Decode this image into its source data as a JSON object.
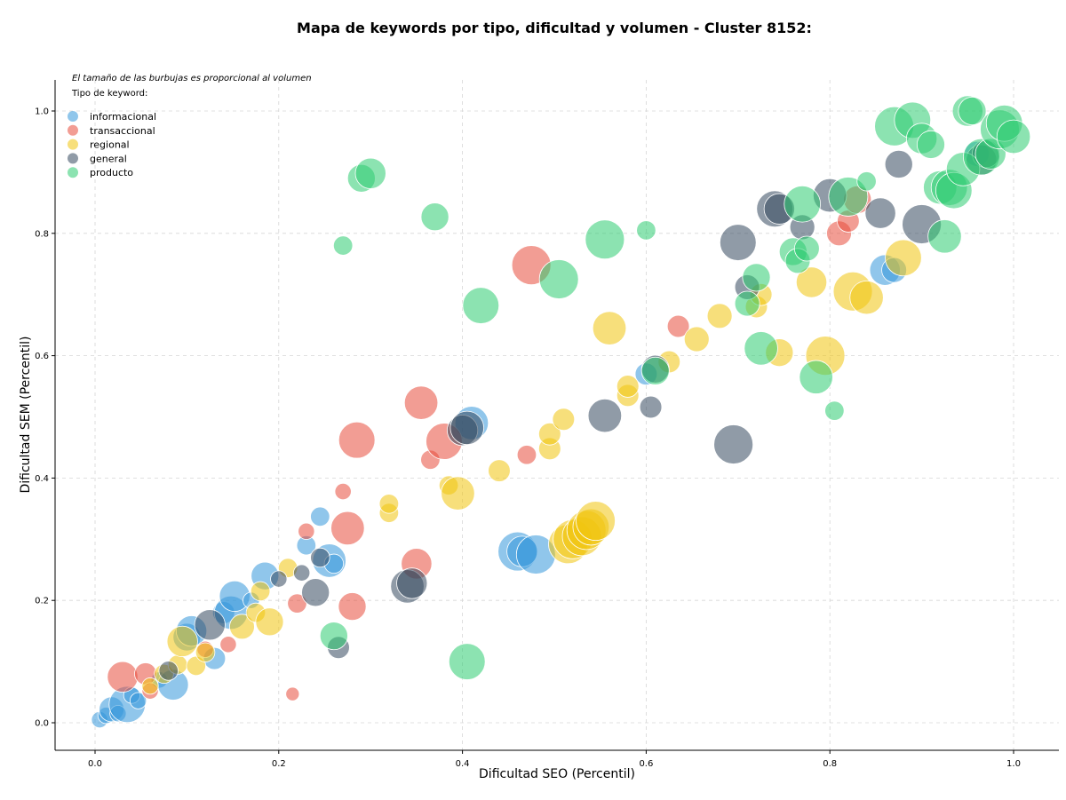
{
  "chart_data": {
    "type": "scatter",
    "title": "Mapa de keywords por tipo, dificultad y volumen - Cluster 8152:",
    "xlabel": "Dificultad SEO (Percentil)",
    "ylabel": "Dificultad SEM (Percentil)",
    "xlim": [
      -0.045,
      1.05
    ],
    "ylim": [
      -0.045,
      1.05
    ],
    "xticks": [
      "0.0",
      "0.2",
      "0.4",
      "0.6",
      "0.8",
      "1.0"
    ],
    "yticks": [
      "0.0",
      "0.2",
      "0.4",
      "0.6",
      "0.8",
      "1.0"
    ],
    "xtick_values": [
      0,
      0.2,
      0.4,
      0.6,
      0.8,
      1.0
    ],
    "ytick_values": [
      0,
      0.2,
      0.4,
      0.6,
      0.8,
      1.0
    ],
    "grid": true,
    "legend_placement": "top-left",
    "note": "El tamaño de las burbujas es proporcional al volumen",
    "legend_title": "Tipo de keyword:",
    "size_encoding": "relative volume (0-1)",
    "series": [
      {
        "name": "informacional",
        "color": "#3498db",
        "points": [
          [
            0.005,
            0.005,
            0.2
          ],
          [
            0.012,
            0.012,
            0.2
          ],
          [
            0.018,
            0.022,
            0.5
          ],
          [
            0.025,
            0.015,
            0.2
          ],
          [
            0.035,
            0.03,
            0.9
          ],
          [
            0.04,
            0.045,
            0.2
          ],
          [
            0.047,
            0.036,
            0.2
          ],
          [
            0.07,
            0.07,
            0.2
          ],
          [
            0.085,
            0.062,
            0.7
          ],
          [
            0.1,
            0.14,
            0.6
          ],
          [
            0.105,
            0.15,
            0.7
          ],
          [
            0.13,
            0.105,
            0.4
          ],
          [
            0.14,
            0.18,
            0.4
          ],
          [
            0.148,
            0.18,
            0.8
          ],
          [
            0.152,
            0.207,
            0.7
          ],
          [
            0.17,
            0.2,
            0.2
          ],
          [
            0.185,
            0.24,
            0.6
          ],
          [
            0.23,
            0.29,
            0.3
          ],
          [
            0.245,
            0.337,
            0.3
          ],
          [
            0.255,
            0.265,
            0.8
          ],
          [
            0.26,
            0.26,
            0.3
          ],
          [
            0.41,
            0.49,
            0.8
          ],
          [
            0.46,
            0.28,
            1.0
          ],
          [
            0.465,
            0.28,
            0.7
          ],
          [
            0.48,
            0.275,
            1.0
          ],
          [
            0.6,
            0.57,
            0.4
          ],
          [
            0.86,
            0.74,
            0.7
          ],
          [
            0.87,
            0.74,
            0.5
          ],
          [
            0.96,
            0.93,
            0.5
          ]
        ]
      },
      {
        "name": "transaccional",
        "color": "#e74c3c",
        "points": [
          [
            0.03,
            0.075,
            0.7
          ],
          [
            0.055,
            0.08,
            0.4
          ],
          [
            0.06,
            0.052,
            0.2
          ],
          [
            0.12,
            0.12,
            0.2
          ],
          [
            0.145,
            0.128,
            0.2
          ],
          [
            0.215,
            0.047,
            0.1
          ],
          [
            0.22,
            0.195,
            0.3
          ],
          [
            0.23,
            0.313,
            0.2
          ],
          [
            0.27,
            0.378,
            0.2
          ],
          [
            0.275,
            0.318,
            0.8
          ],
          [
            0.28,
            0.19,
            0.6
          ],
          [
            0.285,
            0.462,
            0.9
          ],
          [
            0.35,
            0.26,
            0.7
          ],
          [
            0.355,
            0.523,
            0.8
          ],
          [
            0.365,
            0.43,
            0.3
          ],
          [
            0.38,
            0.46,
            0.9
          ],
          [
            0.47,
            0.438,
            0.3
          ],
          [
            0.475,
            0.748,
            1.0
          ],
          [
            0.635,
            0.648,
            0.4
          ],
          [
            0.81,
            0.8,
            0.5
          ],
          [
            0.82,
            0.82,
            0.4
          ],
          [
            0.83,
            0.855,
            0.6
          ]
        ]
      },
      {
        "name": "regional",
        "color": "#f1c40f",
        "points": [
          [
            0.06,
            0.06,
            0.2
          ],
          [
            0.075,
            0.08,
            0.3
          ],
          [
            0.09,
            0.095,
            0.3
          ],
          [
            0.095,
            0.133,
            0.7
          ],
          [
            0.11,
            0.093,
            0.3
          ],
          [
            0.12,
            0.115,
            0.3
          ],
          [
            0.16,
            0.157,
            0.5
          ],
          [
            0.175,
            0.18,
            0.3
          ],
          [
            0.18,
            0.215,
            0.3
          ],
          [
            0.19,
            0.165,
            0.6
          ],
          [
            0.21,
            0.253,
            0.3
          ],
          [
            0.32,
            0.343,
            0.3
          ],
          [
            0.32,
            0.358,
            0.3
          ],
          [
            0.385,
            0.388,
            0.3
          ],
          [
            0.395,
            0.375,
            0.8
          ],
          [
            0.44,
            0.412,
            0.4
          ],
          [
            0.495,
            0.448,
            0.4
          ],
          [
            0.495,
            0.472,
            0.4
          ],
          [
            0.51,
            0.496,
            0.4
          ],
          [
            0.515,
            0.292,
            1.0
          ],
          [
            0.52,
            0.3,
            1.0
          ],
          [
            0.53,
            0.305,
            1.0
          ],
          [
            0.535,
            0.315,
            1.0
          ],
          [
            0.54,
            0.32,
            0.9
          ],
          [
            0.545,
            0.33,
            1.0
          ],
          [
            0.56,
            0.645,
            0.8
          ],
          [
            0.58,
            0.535,
            0.4
          ],
          [
            0.58,
            0.55,
            0.4
          ],
          [
            0.625,
            0.59,
            0.4
          ],
          [
            0.655,
            0.627,
            0.5
          ],
          [
            0.68,
            0.665,
            0.5
          ],
          [
            0.72,
            0.68,
            0.4
          ],
          [
            0.725,
            0.7,
            0.4
          ],
          [
            0.745,
            0.605,
            0.6
          ],
          [
            0.78,
            0.72,
            0.7
          ],
          [
            0.795,
            0.6,
            1.0
          ],
          [
            0.825,
            0.705,
            1.0
          ],
          [
            0.84,
            0.695,
            0.8
          ],
          [
            0.88,
            0.76,
            0.9
          ]
        ]
      },
      {
        "name": "general",
        "color": "#34495e",
        "points": [
          [
            0.08,
            0.085,
            0.3
          ],
          [
            0.125,
            0.16,
            0.7
          ],
          [
            0.2,
            0.235,
            0.2
          ],
          [
            0.225,
            0.245,
            0.2
          ],
          [
            0.24,
            0.213,
            0.6
          ],
          [
            0.245,
            0.27,
            0.3
          ],
          [
            0.265,
            0.123,
            0.4
          ],
          [
            0.34,
            0.223,
            0.8
          ],
          [
            0.345,
            0.228,
            0.7
          ],
          [
            0.4,
            0.478,
            0.7
          ],
          [
            0.405,
            0.482,
            0.8
          ],
          [
            0.555,
            0.502,
            0.8
          ],
          [
            0.605,
            0.516,
            0.4
          ],
          [
            0.61,
            0.578,
            0.6
          ],
          [
            0.695,
            0.455,
            1.0
          ],
          [
            0.7,
            0.785,
            0.9
          ],
          [
            0.71,
            0.712,
            0.5
          ],
          [
            0.74,
            0.84,
            0.9
          ],
          [
            0.745,
            0.84,
            0.7
          ],
          [
            0.77,
            0.81,
            0.5
          ],
          [
            0.8,
            0.862,
            0.8
          ],
          [
            0.855,
            0.833,
            0.7
          ],
          [
            0.875,
            0.913,
            0.6
          ],
          [
            0.9,
            0.815,
            1.0
          ],
          [
            0.965,
            0.92,
            0.7
          ],
          [
            0.97,
            0.93,
            0.6
          ]
        ]
      },
      {
        "name": "producto",
        "color": "#2ecc71",
        "points": [
          [
            0.26,
            0.142,
            0.6
          ],
          [
            0.27,
            0.78,
            0.3
          ],
          [
            0.29,
            0.89,
            0.6
          ],
          [
            0.3,
            0.898,
            0.7
          ],
          [
            0.37,
            0.827,
            0.6
          ],
          [
            0.405,
            0.1,
            0.9
          ],
          [
            0.42,
            0.682,
            0.9
          ],
          [
            0.505,
            0.725,
            1.0
          ],
          [
            0.555,
            0.79,
            1.0
          ],
          [
            0.6,
            0.805,
            0.3
          ],
          [
            0.61,
            0.575,
            0.6
          ],
          [
            0.71,
            0.685,
            0.5
          ],
          [
            0.72,
            0.728,
            0.6
          ],
          [
            0.725,
            0.612,
            0.8
          ],
          [
            0.76,
            0.77,
            0.6
          ],
          [
            0.765,
            0.755,
            0.5
          ],
          [
            0.77,
            0.848,
            0.9
          ],
          [
            0.775,
            0.775,
            0.5
          ],
          [
            0.785,
            0.565,
            0.8
          ],
          [
            0.805,
            0.51,
            0.3
          ],
          [
            0.82,
            0.86,
            1.0
          ],
          [
            0.84,
            0.885,
            0.3
          ],
          [
            0.87,
            0.975,
            1.0
          ],
          [
            0.89,
            0.985,
            0.9
          ],
          [
            0.9,
            0.955,
            0.7
          ],
          [
            0.91,
            0.945,
            0.6
          ],
          [
            0.92,
            0.875,
            0.8
          ],
          [
            0.925,
            0.795,
            0.8
          ],
          [
            0.93,
            0.875,
            0.9
          ],
          [
            0.935,
            0.87,
            0.9
          ],
          [
            0.945,
            0.905,
            0.8
          ],
          [
            0.95,
            1.0,
            0.7
          ],
          [
            0.955,
            1.0,
            0.6
          ],
          [
            0.965,
            0.925,
            0.9
          ],
          [
            0.975,
            0.93,
            0.7
          ],
          [
            0.985,
            0.97,
            1.0
          ],
          [
            0.99,
            0.98,
            0.9
          ],
          [
            1.0,
            0.958,
            0.8
          ]
        ]
      }
    ]
  }
}
